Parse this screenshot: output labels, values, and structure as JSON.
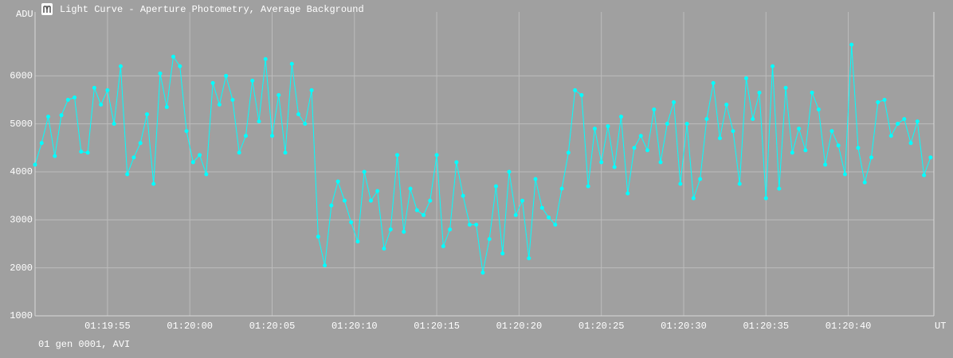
{
  "chart_data": {
    "type": "line",
    "title": "Light Curve - Aperture Photometry, Average Background",
    "y_label": "ADU",
    "x_label": "UT",
    "footer": "01 gen 0001, AVI",
    "color": "#00ffff",
    "grid": true,
    "x": [
      4790.6,
      4791,
      4791.4,
      4791.8,
      4792.2,
      4792.6,
      4793,
      4793.4,
      4793.8,
      4794.2,
      4794.6,
      4795,
      4795.4,
      4795.8,
      4796.2,
      4796.6,
      4797,
      4797.4,
      4797.8,
      4798.2,
      4798.6,
      4799,
      4799.4,
      4799.8,
      4800.2,
      4800.6,
      4801,
      4801.4,
      4801.8,
      4802.2,
      4802.6,
      4803,
      4803.4,
      4803.8,
      4804.2,
      4804.6,
      4805,
      4805.4,
      4805.8,
      4806.2,
      4806.6,
      4807,
      4807.4,
      4807.8,
      4808.2,
      4808.6,
      4809,
      4809.4,
      4809.8,
      4810.2,
      4810.6,
      4811,
      4811.4,
      4811.8,
      4812.2,
      4812.6,
      4813,
      4813.4,
      4813.8,
      4814.2,
      4814.6,
      4815,
      4815.4,
      4815.8,
      4816.2,
      4816.6,
      4817,
      4817.4,
      4817.8,
      4818.2,
      4818.6,
      4819,
      4819.4,
      4819.8,
      4820.2,
      4820.6,
      4821,
      4821.4,
      4821.8,
      4822.2,
      4822.6,
      4823,
      4823.4,
      4823.8,
      4824.2,
      4824.6,
      4825,
      4825.4,
      4825.8,
      4826.2,
      4826.6,
      4827,
      4827.4,
      4827.8,
      4828.2,
      4828.6,
      4829,
      4829.4,
      4829.8,
      4830.2,
      4830.6,
      4831,
      4831.4,
      4831.8,
      4832.2,
      4832.6,
      4833,
      4833.4,
      4833.8,
      4834.2,
      4834.6,
      4835,
      4835.4,
      4835.8,
      4836.2,
      4836.6,
      4837,
      4837.4,
      4837.8,
      4838.2,
      4838.6,
      4839,
      4839.4,
      4839.8,
      4840.2,
      4840.6,
      4841,
      4841.4,
      4841.8,
      4842.2,
      4842.6,
      4843,
      4843.4,
      4843.8,
      4844.2,
      4844.6,
      4845
    ],
    "values": [
      4150,
      4600,
      5150,
      4330,
      5180,
      5500,
      5550,
      4420,
      4400,
      5750,
      5400,
      5700,
      5000,
      6200,
      3950,
      4300,
      4600,
      5200,
      3750,
      6050,
      5350,
      6400,
      6200,
      4850,
      4200,
      4350,
      3950,
      5850,
      5400,
      6000,
      5500,
      4400,
      4750,
      5900,
      5050,
      6350,
      4750,
      5600,
      4400,
      6250,
      5200,
      5000,
      5700,
      2650,
      2050,
      3300,
      3800,
      3400,
      2950,
      2550,
      4000,
      3400,
      3600,
      2400,
      2800,
      4350,
      2750,
      3650,
      3200,
      3100,
      3400,
      4350,
      2450,
      2800,
      4200,
      3500,
      2900,
      2900,
      1900,
      2600,
      3700,
      2300,
      4000,
      3100,
      3400,
      2200,
      3850,
      3250,
      3050,
      2900,
      3650,
      4400,
      5700,
      5600,
      3700,
      4900,
      4200,
      4950,
      4100,
      5150,
      3550,
      4500,
      4750,
      4450,
      5300,
      4200,
      5000,
      5450,
      3750,
      5000,
      3450,
      3850,
      5100,
      5850,
      4700,
      5400,
      4850,
      3750,
      5950,
      5100,
      5650,
      3450,
      6200,
      3650,
      5750,
      4400,
      4900,
      4450,
      5650,
      5300,
      4150,
      4850,
      4550,
      3950,
      6650,
      4500,
      3780,
      4300,
      5450,
      5500,
      4750,
      5000,
      5100,
      4600,
      5050,
      3930,
      4300
    ],
    "xlim": [
      4790.6,
      4845.2
    ],
    "ylim": [
      1000,
      7000
    ],
    "xticks": [
      {
        "value": 4795,
        "label": "01:19:55"
      },
      {
        "value": 4800,
        "label": "01:20:00"
      },
      {
        "value": 4805,
        "label": "01:20:05"
      },
      {
        "value": 4810,
        "label": "01:20:10"
      },
      {
        "value": 4815,
        "label": "01:20:15"
      },
      {
        "value": 4820,
        "label": "01:20:20"
      },
      {
        "value": 4825,
        "label": "01:20:25"
      },
      {
        "value": 4830,
        "label": "01:20:30"
      },
      {
        "value": 4835,
        "label": "01:20:35"
      },
      {
        "value": 4840,
        "label": "01:20:40"
      }
    ],
    "yticks": [
      1000,
      2000,
      3000,
      4000,
      5000,
      6000
    ]
  }
}
